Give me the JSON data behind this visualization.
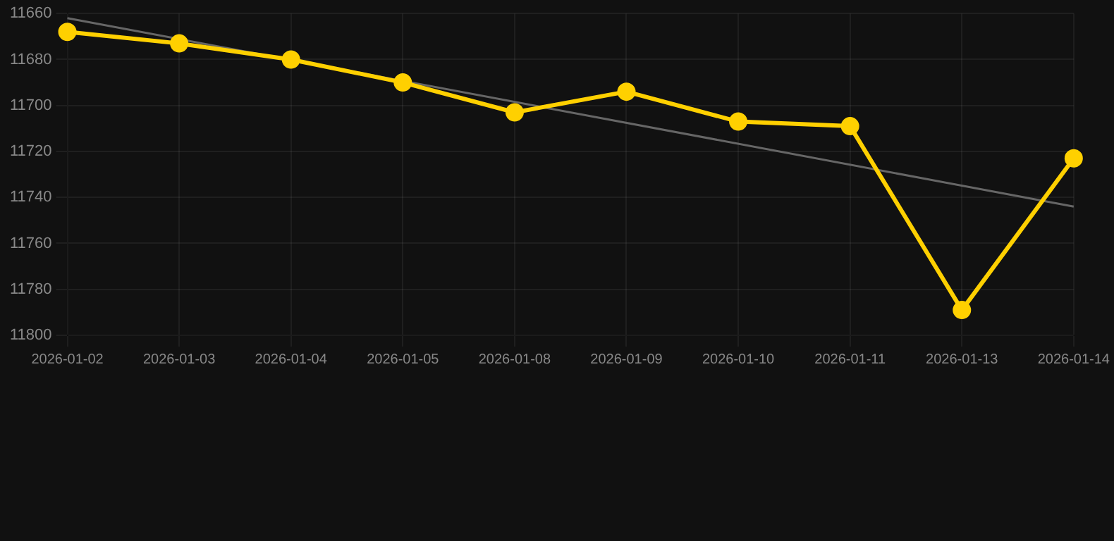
{
  "chart_data": {
    "type": "line",
    "categories": [
      "2026-01-02",
      "2026-01-03",
      "2026-01-04",
      "2026-01-05",
      "2026-01-08",
      "2026-01-09",
      "2026-01-10",
      "2026-01-11",
      "2026-01-13",
      "2026-01-14"
    ],
    "series": [
      {
        "color": "#ffd000",
        "marker": "circle",
        "values": [
          11668,
          11673,
          11680,
          11690,
          11703,
          11694,
          11707,
          11709,
          11789,
          11723
        ]
      },
      {
        "color": "#666666",
        "marker": "none",
        "values": [
          11662,
          null,
          null,
          null,
          null,
          null,
          null,
          null,
          null,
          11744
        ]
      }
    ],
    "ylim": [
      11800,
      11660
    ],
    "yticks": [
      11660,
      11680,
      11700,
      11720,
      11740,
      11760,
      11780,
      11800
    ],
    "grid": true,
    "legend": false
  }
}
